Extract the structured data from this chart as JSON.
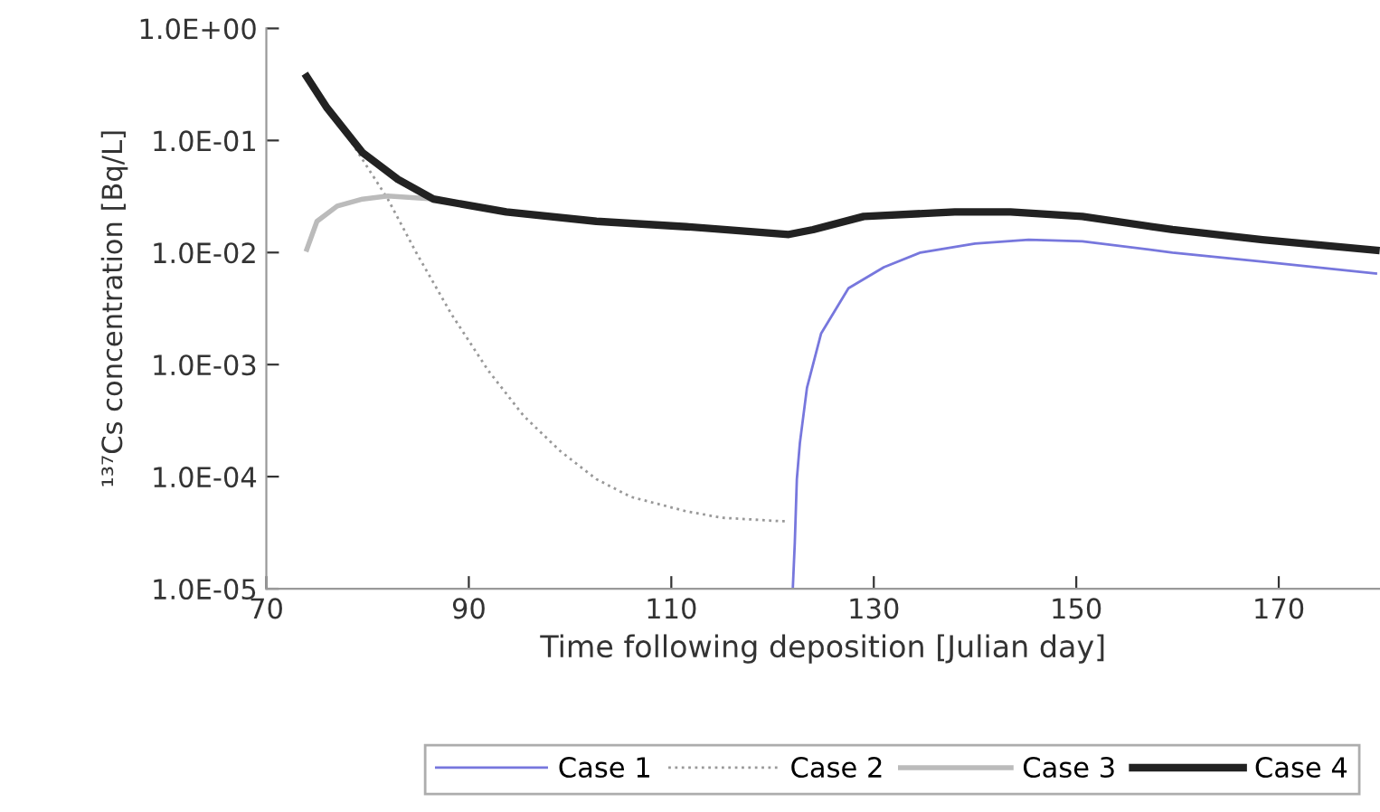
{
  "chart_data": {
    "type": "line",
    "xlabel": "Time following deposition [Julian day]",
    "ylabel": "¹³⁷Cs concentration [Bq/L]",
    "log": "y",
    "xlim": [
      70,
      180
    ],
    "xticks": [
      70,
      90,
      110,
      130,
      150,
      170
    ],
    "ylim": [
      1e-05,
      1
    ],
    "yticks": [
      {
        "value": 1,
        "label": "1.0E+00"
      },
      {
        "value": 0.1,
        "label": "1.0E-01"
      },
      {
        "value": 0.01,
        "label": "1.0E-02"
      },
      {
        "value": 0.001,
        "label": "1.0E-03"
      },
      {
        "value": 0.0001,
        "label": "1.0E-04"
      },
      {
        "value": 1e-05,
        "label": "1.0E-05"
      }
    ],
    "grid": false,
    "legend": "bottom",
    "marker": "none",
    "series": [
      {
        "name": "Case 1",
        "color": "#7777dd",
        "line_style": "solid",
        "x": [
          122,
          122.2,
          122.4,
          122.7,
          123.4,
          124.8,
          127.5,
          131,
          134.6,
          140,
          145.3,
          150.6,
          159.5,
          168.4,
          179.6
        ],
        "values": [
          1e-05,
          2.6e-05,
          9.5e-05,
          0.0002,
          0.00062,
          0.0019,
          0.0048,
          0.0074,
          0.01,
          0.012,
          0.013,
          0.0126,
          0.01,
          0.0083,
          0.0065
        ]
      },
      {
        "name": "Case 2",
        "color": "#999999",
        "line_style": "dotted",
        "x": [
          74,
          76,
          78,
          82,
          84.8,
          88.3,
          91.9,
          95.4,
          99,
          102.6,
          106,
          111.5,
          115,
          120.9,
          121.5
        ],
        "values": [
          0.37,
          0.195,
          0.11,
          0.03,
          0.01,
          0.0028,
          0.00089,
          0.00035,
          0.00017,
          9.5e-05,
          6.6e-05,
          4.9e-05,
          4.3e-05,
          4e-05,
          4e-05
        ]
      },
      {
        "name": "Case 3",
        "color": "#bbbbbb",
        "line_style": "solid",
        "x": [
          74,
          75,
          77,
          79.5,
          82,
          86.5
        ],
        "values": [
          0.0107,
          0.019,
          0.026,
          0.03,
          0.032,
          0.03
        ]
      },
      {
        "name": "Case 4",
        "color": "#222222",
        "line_style": "solid",
        "x": [
          74,
          76,
          79.5,
          83,
          86.5,
          93.7,
          102.6,
          111.5,
          121.6,
          124,
          129,
          138,
          143.5,
          150.6,
          159.5,
          168.4,
          179.6
        ],
        "values": [
          0.37,
          0.195,
          0.078,
          0.045,
          0.03,
          0.023,
          0.019,
          0.017,
          0.0145,
          0.016,
          0.021,
          0.023,
          0.023,
          0.021,
          0.016,
          0.013,
          0.0105
        ]
      }
    ]
  }
}
